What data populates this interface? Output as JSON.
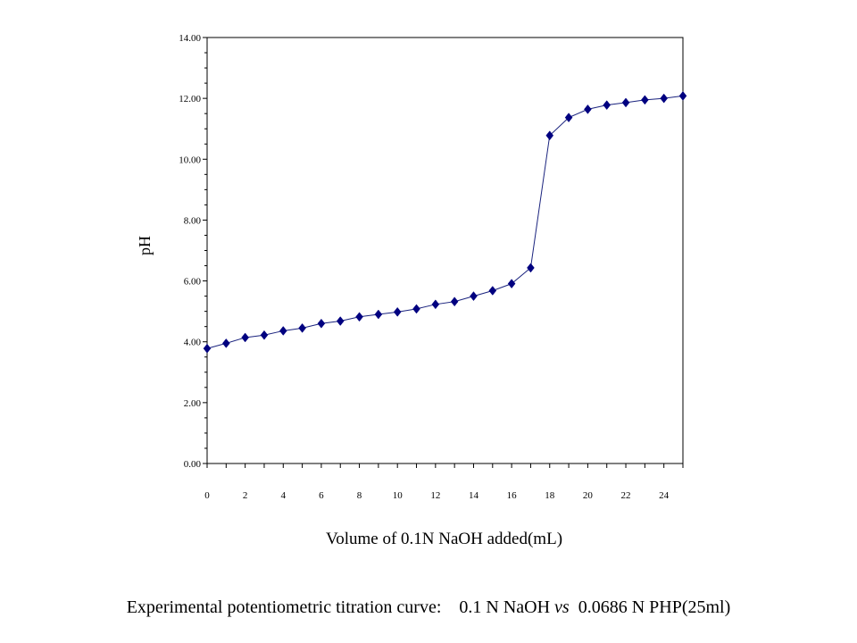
{
  "chart_data": {
    "type": "line",
    "x": [
      0,
      1,
      2,
      3,
      4,
      5,
      6,
      7,
      8,
      9,
      10,
      11,
      12,
      13,
      14,
      15,
      16,
      17,
      18,
      19,
      20,
      21,
      22,
      23,
      24,
      25
    ],
    "series": [
      {
        "values": [
          3.78,
          3.95,
          4.14,
          4.22,
          4.36,
          4.45,
          4.6,
          4.68,
          4.82,
          4.9,
          4.98,
          5.08,
          5.23,
          5.32,
          5.5,
          5.68,
          5.91,
          6.43,
          10.78,
          11.37,
          11.64,
          11.78,
          11.86,
          11.95,
          12.0,
          12.08
        ]
      }
    ],
    "xlim": [
      0,
      25
    ],
    "ylim": [
      0,
      14
    ],
    "x_ticks": [
      0,
      2,
      4,
      6,
      8,
      10,
      12,
      14,
      16,
      18,
      20,
      22,
      24
    ],
    "y_ticks": [
      0,
      2,
      4,
      6,
      8,
      10,
      12,
      14
    ],
    "y_tick_labels": [
      "0.00",
      "2.00",
      "4.00",
      "6.00",
      "8.00",
      "10.00",
      "12.00",
      "14.00"
    ],
    "xlabel": "Volume of 0.1N NaOH added(mL)",
    "ylabel": "pH",
    "grid": false,
    "marker": "diamond",
    "line_color": "#1a237e",
    "marker_color": "#000080"
  },
  "caption": {
    "prefix": "Experimental potentiometric titration curve:    0.1 N NaOH ",
    "vs": "vs",
    "suffix": "  0.0686 N PHP(25ml)"
  }
}
